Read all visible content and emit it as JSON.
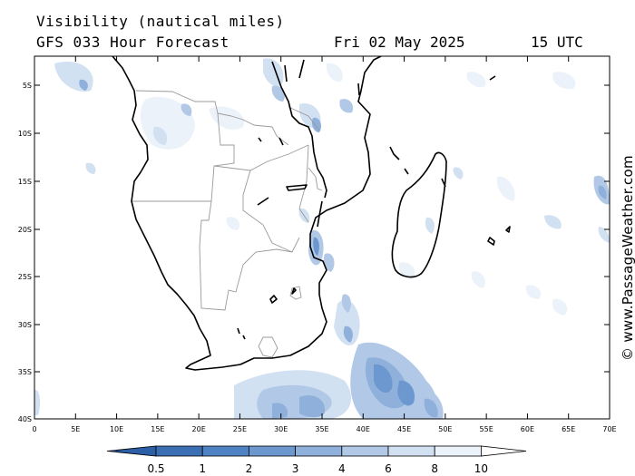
{
  "header": {
    "line1": "Visibility (nautical miles)",
    "line2": "GFS 033 Hour Forecast",
    "date": "Fri 02 May 2025",
    "time": "15 UTC"
  },
  "credit": "© www.PassageWeather.com",
  "map": {
    "lat_labels": [
      "5S",
      "10S",
      "15S",
      "20S",
      "25S",
      "30S",
      "35S",
      "40S"
    ],
    "lon_labels": [
      "0",
      "5E",
      "10E",
      "15E",
      "20E",
      "25E",
      "30E",
      "35E",
      "40E",
      "45E",
      "50E",
      "55E",
      "60E",
      "65E",
      "70E"
    ],
    "land_color": "#ffffff",
    "coast_color": "#000000",
    "border_color": "#9a9a9a"
  },
  "legend": {
    "labels": [
      "0.5",
      "1",
      "2",
      "3",
      "4",
      "6",
      "8",
      "10"
    ],
    "colors": [
      "#3a6fb4",
      "#4f82c2",
      "#6c98cf",
      "#8eb0db",
      "#b1c9e7",
      "#d2e1f2",
      "#ecf2fa",
      "#ffffff"
    ],
    "units": "nautical miles"
  }
}
